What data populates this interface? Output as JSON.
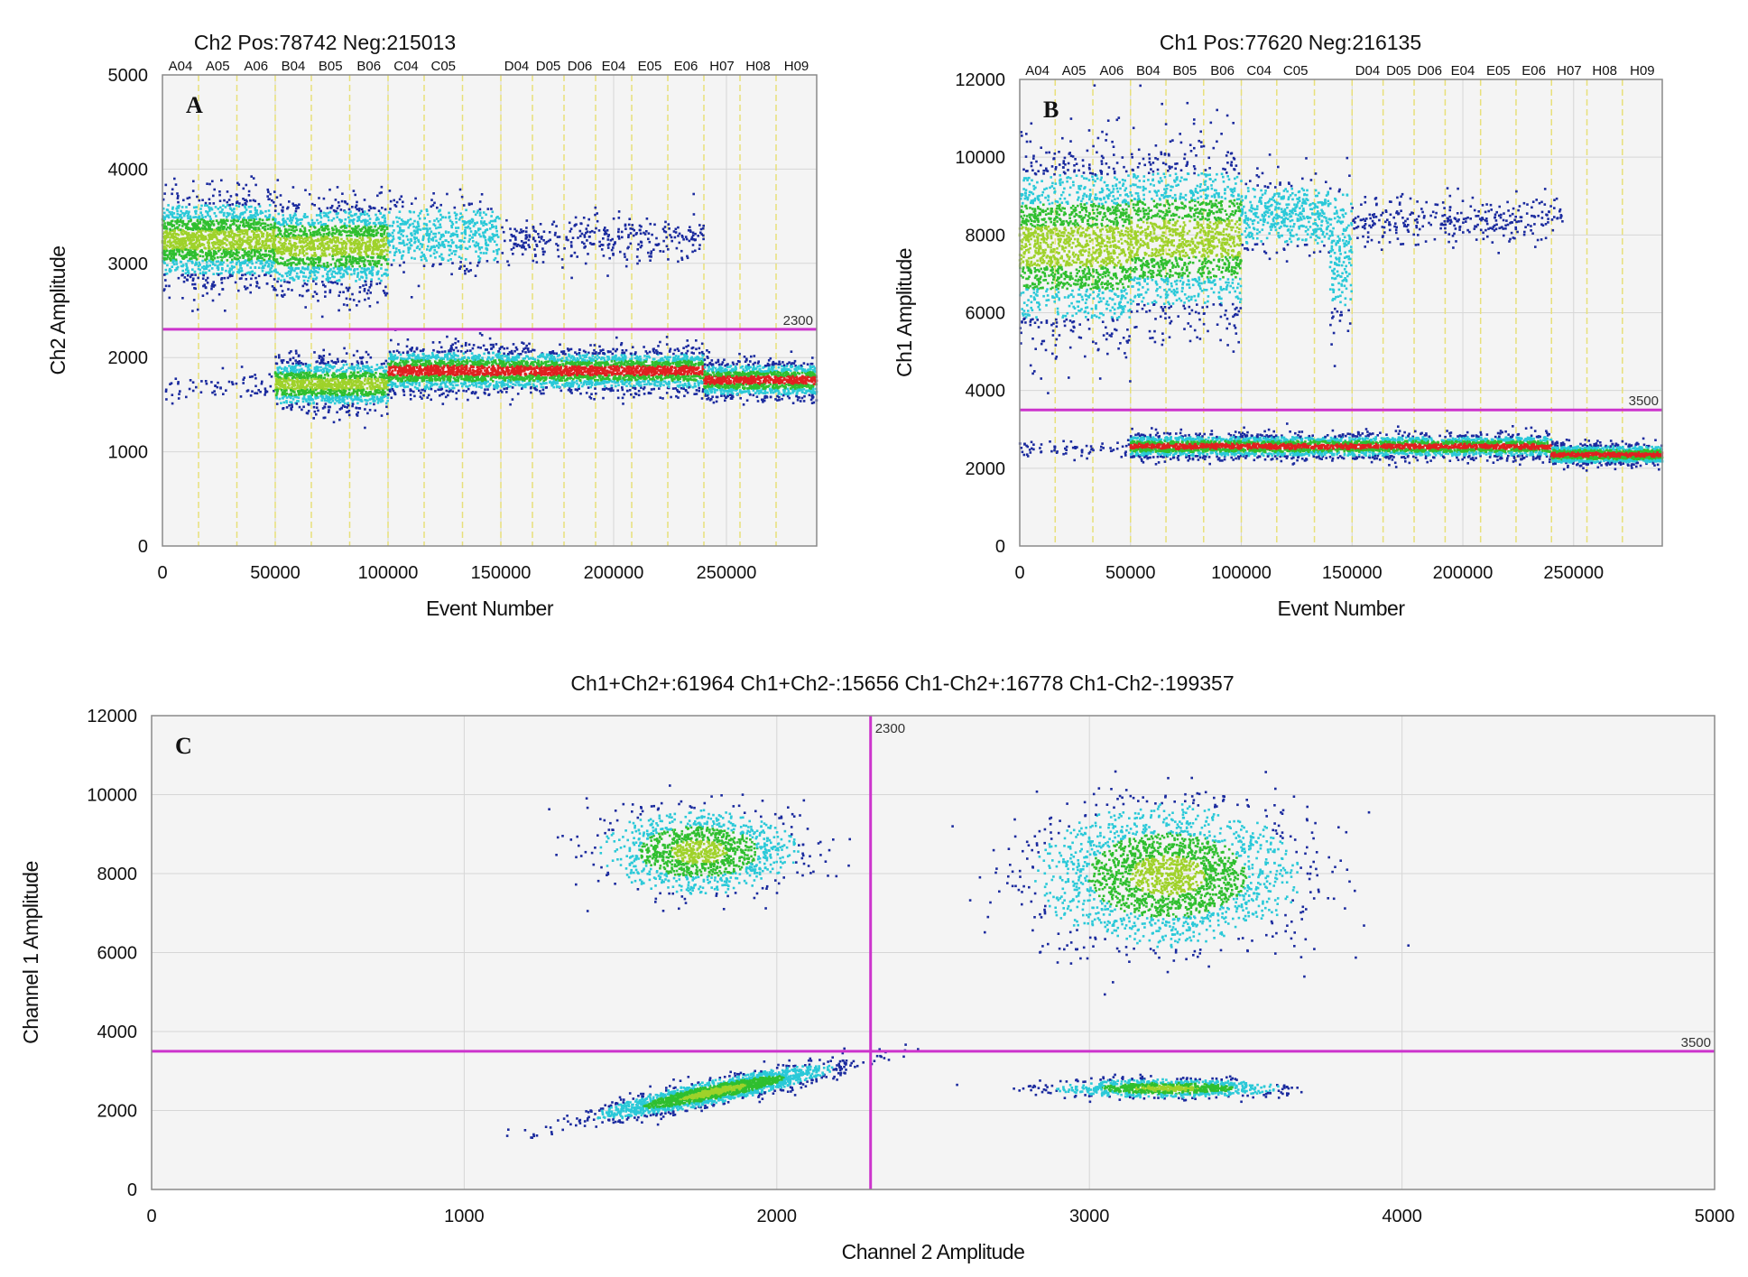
{
  "colors": {
    "threshold": "#cc33cc",
    "well_divider": "#e8e07a",
    "grid": "#d6d6d6",
    "plot_bg": "#f4f4f4",
    "density_low": "#1a2a9e",
    "density_mid": "#2ac9d8",
    "density_high": "#2fbf2f",
    "density_peak": "#e02020"
  },
  "chart_data": [
    {
      "id": "A",
      "type": "scatter",
      "panel_label": "A",
      "title": "Ch2 Pos:78742 Neg:215013",
      "xlabel": "Event Number",
      "ylabel": "Ch2 Amplitude",
      "xlim": [
        0,
        290000
      ],
      "ylim": [
        0,
        5000
      ],
      "xticks": [
        0,
        50000,
        100000,
        150000,
        200000,
        250000
      ],
      "xtick_labels": [
        "0",
        "50000",
        "100000",
        "150000",
        "200000",
        "250000"
      ],
      "yticks": [
        0,
        1000,
        2000,
        3000,
        4000,
        5000
      ],
      "ytick_labels": [
        "0",
        "1000",
        "2000",
        "3000",
        "4000",
        "5000"
      ],
      "threshold": {
        "axis": "y",
        "value": 2300,
        "label": "2300"
      },
      "well_labels": [
        "A04",
        "A05",
        "A06",
        "B04",
        "B05",
        "B06",
        "C04",
        "C05",
        "",
        "D04",
        "D05",
        "D06",
        "E04",
        "E05",
        "E06",
        "H07",
        "H08",
        "H09"
      ],
      "well_boundaries": [
        0,
        16000,
        33000,
        50000,
        66000,
        83000,
        100000,
        116000,
        133000,
        150000,
        164000,
        178000,
        192000,
        208000,
        224000,
        240000,
        256000,
        272000,
        290000
      ],
      "clusters": [
        {
          "x": [
            0,
            50000
          ],
          "y_mean": 3250,
          "y_sd": 230,
          "n": 1600,
          "density": "high"
        },
        {
          "x": [
            50000,
            100000
          ],
          "y_mean": 3180,
          "y_sd": 230,
          "n": 1400,
          "density": "high"
        },
        {
          "x": [
            100000,
            150000
          ],
          "y_mean": 3300,
          "y_sd": 170,
          "n": 500,
          "density": "mid"
        },
        {
          "x": [
            150000,
            240000
          ],
          "y_mean": 3250,
          "y_sd": 130,
          "n": 320,
          "density": "low"
        },
        {
          "x": [
            0,
            50000
          ],
          "y_mean": 1700,
          "y_sd": 80,
          "n": 70,
          "density": "low"
        },
        {
          "x": [
            50000,
            100000
          ],
          "y_mean": 1720,
          "y_sd": 130,
          "n": 1300,
          "density": "high"
        },
        {
          "x": [
            100000,
            150000
          ],
          "y_mean": 1860,
          "y_sd": 120,
          "n": 1300,
          "density": "peak"
        },
        {
          "x": [
            150000,
            240000
          ],
          "y_mean": 1860,
          "y_sd": 110,
          "n": 2200,
          "density": "peak"
        },
        {
          "x": [
            240000,
            290000
          ],
          "y_mean": 1760,
          "y_sd": 95,
          "n": 1300,
          "density": "peak"
        }
      ]
    },
    {
      "id": "B",
      "type": "scatter",
      "panel_label": "B",
      "title": "Ch1 Pos:77620 Neg:216135",
      "xlabel": "Event Number",
      "ylabel": "Ch1 Amplitude",
      "xlim": [
        0,
        290000
      ],
      "ylim": [
        0,
        12000
      ],
      "xticks": [
        0,
        50000,
        100000,
        150000,
        200000,
        250000
      ],
      "xtick_labels": [
        "0",
        "50000",
        "100000",
        "150000",
        "200000",
        "250000"
      ],
      "yticks": [
        0,
        2000,
        4000,
        6000,
        8000,
        10000,
        12000
      ],
      "ytick_labels": [
        "0",
        "2000",
        "4000",
        "6000",
        "8000",
        "10000",
        "12000"
      ],
      "threshold": {
        "axis": "y",
        "value": 3500,
        "label": "3500"
      },
      "well_labels": [
        "A04",
        "A05",
        "A06",
        "B04",
        "B05",
        "B06",
        "C04",
        "C05",
        "",
        "D04",
        "D05",
        "D06",
        "E04",
        "E05",
        "E06",
        "H07",
        "H08",
        "H09"
      ],
      "well_boundaries": [
        0,
        16000,
        33000,
        50000,
        66000,
        83000,
        100000,
        116000,
        133000,
        150000,
        164000,
        178000,
        192000,
        208000,
        224000,
        240000,
        256000,
        272000,
        290000
      ],
      "clusters": [
        {
          "x": [
            0,
            50000
          ],
          "y_mean": 7700,
          "y_sd": 1150,
          "n": 1700,
          "density": "high"
        },
        {
          "x": [
            50000,
            100000
          ],
          "y_mean": 7900,
          "y_sd": 1050,
          "n": 1500,
          "density": "high"
        },
        {
          "x": [
            100000,
            140000
          ],
          "y_mean": 8500,
          "y_sd": 450,
          "n": 450,
          "density": "mid"
        },
        {
          "x": [
            140000,
            150000
          ],
          "y_mean": 7600,
          "y_sd": 900,
          "n": 180,
          "density": "mid"
        },
        {
          "x": [
            150000,
            245000
          ],
          "y_mean": 8350,
          "y_sd": 300,
          "n": 320,
          "density": "low"
        },
        {
          "x": [
            0,
            50000
          ],
          "y_mean": 2500,
          "y_sd": 110,
          "n": 70,
          "density": "low"
        },
        {
          "x": [
            50000,
            240000
          ],
          "y_mean": 2560,
          "y_sd": 150,
          "n": 3600,
          "density": "peak"
        },
        {
          "x": [
            240000,
            290000
          ],
          "y_mean": 2350,
          "y_sd": 130,
          "n": 1300,
          "density": "peak"
        }
      ]
    },
    {
      "id": "C",
      "type": "scatter",
      "panel_label": "C",
      "title": "Ch1+Ch2+:61964  Ch1+Ch2-:15656  Ch1-Ch2+:16778  Ch1-Ch2-:199357",
      "xlabel": "Channel 2 Amplitude",
      "ylabel": "Channel 1 Amplitude",
      "xlim": [
        0,
        5000
      ],
      "ylim": [
        0,
        12000
      ],
      "xticks": [
        0,
        1000,
        2000,
        3000,
        4000,
        5000
      ],
      "xtick_labels": [
        "0",
        "1000",
        "2000",
        "3000",
        "4000",
        "5000"
      ],
      "yticks": [
        0,
        2000,
        4000,
        6000,
        8000,
        10000,
        12000
      ],
      "ytick_labels": [
        "0",
        "2000",
        "4000",
        "6000",
        "8000",
        "10000",
        "12000"
      ],
      "threshold_x": {
        "axis": "x",
        "value": 2300,
        "label": "2300"
      },
      "threshold_y": {
        "axis": "y",
        "value": 3500,
        "label": "3500"
      },
      "quadrant_counts": {
        "Ch1+Ch2+": 61964,
        "Ch1+Ch2-": 15656,
        "Ch1-Ch2+": 16778,
        "Ch1-Ch2-": 199357
      },
      "clusters": [
        {
          "name": "Ch1+Ch2-",
          "x_mean": 1750,
          "x_sd": 150,
          "y_mean": 8550,
          "y_sd": 500,
          "n": 1300
        },
        {
          "name": "Ch1+Ch2+",
          "x_mean": 3250,
          "x_sd": 200,
          "y_mean": 7950,
          "y_sd": 850,
          "n": 2300
        },
        {
          "name": "Ch1-Ch2-",
          "x_mean": 1800,
          "x_sd": 180,
          "y_mean": 2470,
          "y_sd": 140,
          "n": 2200
        },
        {
          "name": "Ch1-Ch2+",
          "x_mean": 3250,
          "x_sd": 170,
          "y_mean": 2560,
          "y_sd": 110,
          "n": 1000
        }
      ]
    }
  ]
}
